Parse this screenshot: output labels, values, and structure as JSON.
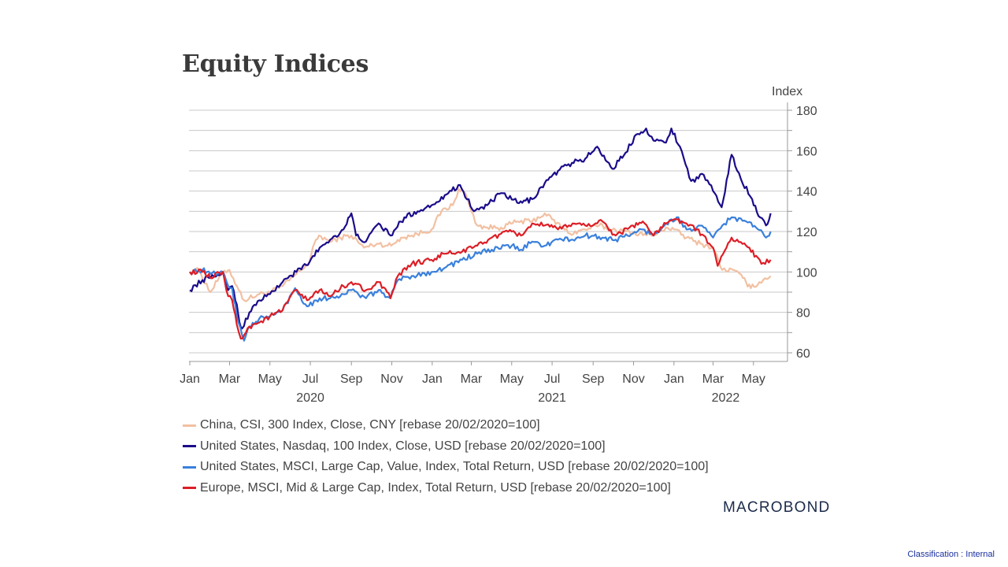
{
  "slide": {
    "title": "Equity Indices",
    "logo": "MACROBOND",
    "classification": "Classification : Internal"
  },
  "chart_data": {
    "type": "line",
    "title": "Equity Indices",
    "ylabel": "Index",
    "xlabel": "",
    "ylim": [
      60,
      180
    ],
    "y_ticks": [
      60,
      80,
      100,
      120,
      140,
      160,
      180
    ],
    "y_minor_ticks": [
      70,
      90,
      110,
      130,
      150,
      170
    ],
    "x_range": [
      "2020-01-01",
      "2022-05-31"
    ],
    "x_ticks": [
      {
        "label": "Jan",
        "date": "2020-01-01"
      },
      {
        "label": "Mar",
        "date": "2020-03-01"
      },
      {
        "label": "May",
        "date": "2020-05-01"
      },
      {
        "label": "Jul",
        "date": "2020-07-01"
      },
      {
        "label": "Sep",
        "date": "2020-09-01"
      },
      {
        "label": "Nov",
        "date": "2020-11-01"
      },
      {
        "label": "Jan",
        "date": "2021-01-01"
      },
      {
        "label": "Mar",
        "date": "2021-03-01"
      },
      {
        "label": "May",
        "date": "2021-05-01"
      },
      {
        "label": "Jul",
        "date": "2021-07-01"
      },
      {
        "label": "Sep",
        "date": "2021-09-01"
      },
      {
        "label": "Nov",
        "date": "2021-11-01"
      },
      {
        "label": "Jan",
        "date": "2022-01-01"
      },
      {
        "label": "Mar",
        "date": "2022-03-01"
      },
      {
        "label": "May",
        "date": "2022-05-01"
      }
    ],
    "year_labels": [
      {
        "label": "2020",
        "date": "2020-07-01"
      },
      {
        "label": "2021",
        "date": "2021-07-01"
      },
      {
        "label": "2022",
        "date": "2022-03-20"
      }
    ],
    "grid": true,
    "legend_position": "bottom-left",
    "series": [
      {
        "name": "China, CSI, 300 Index, Close, CNY [rebase 20/02/2020=100]",
        "color": "#f2c0a2",
        "points": [
          [
            "2020-01-01",
            100
          ],
          [
            "2020-01-15",
            101
          ],
          [
            "2020-02-01",
            90
          ],
          [
            "2020-02-20",
            100
          ],
          [
            "2020-03-01",
            101
          ],
          [
            "2020-03-15",
            91
          ],
          [
            "2020-03-23",
            86
          ],
          [
            "2020-04-15",
            89
          ],
          [
            "2020-05-01",
            90
          ],
          [
            "2020-05-20",
            93
          ],
          [
            "2020-06-10",
            99
          ],
          [
            "2020-06-30",
            105
          ],
          [
            "2020-07-07",
            114
          ],
          [
            "2020-07-14",
            118
          ],
          [
            "2020-07-31",
            115
          ],
          [
            "2020-08-15",
            117
          ],
          [
            "2020-09-01",
            118
          ],
          [
            "2020-09-20",
            112
          ],
          [
            "2020-10-10",
            114
          ],
          [
            "2020-10-31",
            113
          ],
          [
            "2020-11-15",
            117
          ],
          [
            "2020-12-01",
            118
          ],
          [
            "2020-12-31",
            121
          ],
          [
            "2021-01-15",
            130
          ],
          [
            "2021-02-01",
            133
          ],
          [
            "2021-02-10",
            141
          ],
          [
            "2021-02-20",
            139
          ],
          [
            "2021-03-01",
            130
          ],
          [
            "2021-03-10",
            123
          ],
          [
            "2021-03-25",
            122
          ],
          [
            "2021-04-15",
            122
          ],
          [
            "2021-05-10",
            125
          ],
          [
            "2021-06-01",
            125
          ],
          [
            "2021-06-20",
            129
          ],
          [
            "2021-07-01",
            126
          ],
          [
            "2021-07-28",
            119
          ],
          [
            "2021-08-20",
            121
          ],
          [
            "2021-09-10",
            123
          ],
          [
            "2021-09-30",
            121
          ],
          [
            "2021-10-20",
            120
          ],
          [
            "2021-11-10",
            119
          ],
          [
            "2021-12-01",
            118
          ],
          [
            "2021-12-20",
            122
          ],
          [
            "2022-01-01",
            121
          ],
          [
            "2022-01-20",
            117
          ],
          [
            "2022-02-10",
            114
          ],
          [
            "2022-03-01",
            112
          ],
          [
            "2022-03-15",
            101
          ],
          [
            "2022-04-01",
            101
          ],
          [
            "2022-04-15",
            97
          ],
          [
            "2022-04-27",
            92
          ],
          [
            "2022-05-10",
            95
          ],
          [
            "2022-05-27",
            98
          ]
        ]
      },
      {
        "name": "United States, Nasdaq, 100 Index, Close, USD [rebase 20/02/2020=100]",
        "color": "#1a0c8a",
        "points": [
          [
            "2020-01-01",
            91
          ],
          [
            "2020-01-20",
            96
          ],
          [
            "2020-02-01",
            97
          ],
          [
            "2020-02-20",
            100
          ],
          [
            "2020-02-28",
            91
          ],
          [
            "2020-03-05",
            93
          ],
          [
            "2020-03-12",
            84
          ],
          [
            "2020-03-16",
            75
          ],
          [
            "2020-03-20",
            72
          ],
          [
            "2020-03-31",
            80
          ],
          [
            "2020-04-15",
            86
          ],
          [
            "2020-05-01",
            89
          ],
          [
            "2020-05-20",
            95
          ],
          [
            "2020-06-10",
            100
          ],
          [
            "2020-06-30",
            105
          ],
          [
            "2020-07-15",
            112
          ],
          [
            "2020-07-31",
            116
          ],
          [
            "2020-08-20",
            121
          ],
          [
            "2020-09-01",
            129
          ],
          [
            "2020-09-08",
            118
          ],
          [
            "2020-09-23",
            115
          ],
          [
            "2020-10-12",
            124
          ],
          [
            "2020-10-30",
            118
          ],
          [
            "2020-11-20",
            127
          ],
          [
            "2020-12-10",
            130
          ],
          [
            "2020-12-31",
            133
          ],
          [
            "2021-01-20",
            138
          ],
          [
            "2021-02-12",
            143
          ],
          [
            "2021-03-05",
            130
          ],
          [
            "2021-03-25",
            133
          ],
          [
            "2021-04-15",
            139
          ],
          [
            "2021-05-12",
            134
          ],
          [
            "2021-06-01",
            136
          ],
          [
            "2021-06-20",
            144
          ],
          [
            "2021-07-10",
            150
          ],
          [
            "2021-07-31",
            154
          ],
          [
            "2021-08-20",
            156
          ],
          [
            "2021-09-07",
            162
          ],
          [
            "2021-09-30",
            151
          ],
          [
            "2021-10-20",
            159
          ],
          [
            "2021-11-05",
            168
          ],
          [
            "2021-11-20",
            171
          ],
          [
            "2021-12-01",
            165
          ],
          [
            "2021-12-20",
            164
          ],
          [
            "2021-12-28",
            171
          ],
          [
            "2022-01-10",
            162
          ],
          [
            "2022-01-27",
            145
          ],
          [
            "2022-02-15",
            148
          ],
          [
            "2022-03-01",
            140
          ],
          [
            "2022-03-14",
            132
          ],
          [
            "2022-03-29",
            158
          ],
          [
            "2022-04-12",
            146
          ],
          [
            "2022-04-29",
            136
          ],
          [
            "2022-05-11",
            127
          ],
          [
            "2022-05-20",
            123
          ],
          [
            "2022-05-27",
            129
          ]
        ]
      },
      {
        "name": "United States, MSCI, Large Cap, Value, Index, Total Return, USD [rebase 20/02/2020=100]",
        "color": "#3a80dc",
        "points": [
          [
            "2020-01-01",
            100
          ],
          [
            "2020-01-20",
            101
          ],
          [
            "2020-02-01",
            99
          ],
          [
            "2020-02-20",
            100
          ],
          [
            "2020-02-28",
            93
          ],
          [
            "2020-03-05",
            92
          ],
          [
            "2020-03-12",
            78
          ],
          [
            "2020-03-23",
            66
          ],
          [
            "2020-03-31",
            73
          ],
          [
            "2020-04-15",
            77
          ],
          [
            "2020-05-01",
            78
          ],
          [
            "2020-05-20",
            81
          ],
          [
            "2020-06-08",
            92
          ],
          [
            "2020-06-26",
            83
          ],
          [
            "2020-07-15",
            87
          ],
          [
            "2020-07-31",
            87
          ],
          [
            "2020-08-20",
            89
          ],
          [
            "2020-09-01",
            91
          ],
          [
            "2020-09-23",
            87
          ],
          [
            "2020-10-12",
            91
          ],
          [
            "2020-10-30",
            87
          ],
          [
            "2020-11-10",
            96
          ],
          [
            "2020-12-01",
            98
          ],
          [
            "2020-12-31",
            100
          ],
          [
            "2021-01-20",
            102
          ],
          [
            "2021-02-15",
            106
          ],
          [
            "2021-03-10",
            109
          ],
          [
            "2021-04-01",
            111
          ],
          [
            "2021-05-01",
            113
          ],
          [
            "2021-05-15",
            111
          ],
          [
            "2021-06-01",
            115
          ],
          [
            "2021-06-20",
            113
          ],
          [
            "2021-07-10",
            116
          ],
          [
            "2021-08-01",
            116
          ],
          [
            "2021-08-20",
            118
          ],
          [
            "2021-09-15",
            117
          ],
          [
            "2021-10-05",
            116
          ],
          [
            "2021-10-31",
            119
          ],
          [
            "2021-11-15",
            121
          ],
          [
            "2021-12-01",
            118
          ],
          [
            "2021-12-20",
            124
          ],
          [
            "2022-01-05",
            127
          ],
          [
            "2022-01-20",
            121
          ],
          [
            "2022-02-15",
            122
          ],
          [
            "2022-03-01",
            117
          ],
          [
            "2022-03-15",
            123
          ],
          [
            "2022-03-29",
            127
          ],
          [
            "2022-04-20",
            125
          ],
          [
            "2022-05-05",
            122
          ],
          [
            "2022-05-20",
            117
          ],
          [
            "2022-05-27",
            120
          ]
        ]
      },
      {
        "name": "Europe, MSCI, Mid & Large Cap, Index, Total Return, USD [rebase 20/02/2020=100]",
        "color": "#dc1e26",
        "points": [
          [
            "2020-01-01",
            100
          ],
          [
            "2020-01-20",
            100
          ],
          [
            "2020-02-01",
            97
          ],
          [
            "2020-02-20",
            100
          ],
          [
            "2020-02-28",
            88
          ],
          [
            "2020-03-05",
            86
          ],
          [
            "2020-03-12",
            74
          ],
          [
            "2020-03-18",
            67
          ],
          [
            "2020-03-31",
            73
          ],
          [
            "2020-04-15",
            75
          ],
          [
            "2020-05-01",
            78
          ],
          [
            "2020-05-20",
            81
          ],
          [
            "2020-06-08",
            91
          ],
          [
            "2020-06-26",
            86
          ],
          [
            "2020-07-15",
            91
          ],
          [
            "2020-07-31",
            88
          ],
          [
            "2020-08-20",
            93
          ],
          [
            "2020-09-01",
            95
          ],
          [
            "2020-09-23",
            91
          ],
          [
            "2020-10-12",
            95
          ],
          [
            "2020-10-30",
            87
          ],
          [
            "2020-11-10",
            98
          ],
          [
            "2020-12-01",
            104
          ],
          [
            "2020-12-31",
            106
          ],
          [
            "2021-01-20",
            109
          ],
          [
            "2021-02-15",
            110
          ],
          [
            "2021-03-10",
            113
          ],
          [
            "2021-04-01",
            117
          ],
          [
            "2021-05-01",
            120
          ],
          [
            "2021-05-15",
            118
          ],
          [
            "2021-06-01",
            124
          ],
          [
            "2021-06-20",
            123
          ],
          [
            "2021-07-10",
            121
          ],
          [
            "2021-08-01",
            124
          ],
          [
            "2021-08-20",
            123
          ],
          [
            "2021-09-15",
            125
          ],
          [
            "2021-10-05",
            118
          ],
          [
            "2021-10-31",
            123
          ],
          [
            "2021-11-15",
            125
          ],
          [
            "2021-12-01",
            118
          ],
          [
            "2021-12-20",
            124
          ],
          [
            "2022-01-05",
            126
          ],
          [
            "2022-01-20",
            124
          ],
          [
            "2022-02-15",
            118
          ],
          [
            "2022-03-01",
            112
          ],
          [
            "2022-03-08",
            103
          ],
          [
            "2022-03-29",
            117
          ],
          [
            "2022-04-20",
            113
          ],
          [
            "2022-05-05",
            108
          ],
          [
            "2022-05-13",
            104
          ],
          [
            "2022-05-27",
            106
          ]
        ]
      }
    ]
  }
}
